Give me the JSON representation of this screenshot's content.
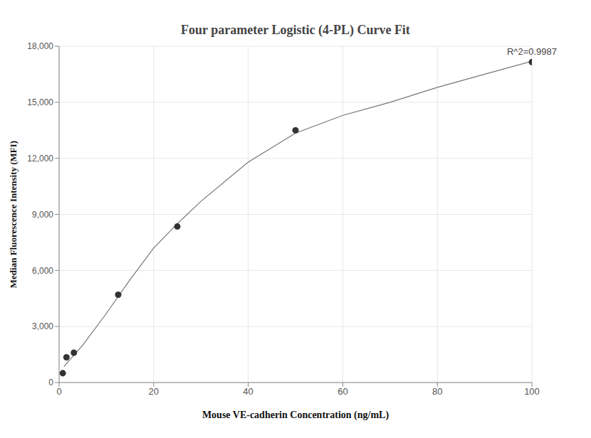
{
  "chart_data": {
    "type": "scatter",
    "title": "Four parameter Logistic (4-PL) Curve Fit",
    "x_label": "Mouse VE-cadherin Concentration (ng/mL)",
    "y_label": "Median Fluorescence Intensity (MFI)",
    "xlim": [
      0,
      100
    ],
    "xticks": [
      0,
      20,
      40,
      60,
      80,
      100
    ],
    "ylim": [
      0,
      18000
    ],
    "yticks": [
      0,
      {
        "value": 3000,
        "label": "3,000"
      },
      {
        "value": 6000,
        "label": "6,000"
      },
      {
        "value": 9000,
        "label": "9,000"
      },
      {
        "value": 12000,
        "label": "12,000"
      },
      {
        "value": 15000,
        "label": "15,000"
      },
      {
        "value": 18000,
        "label": "18,000"
      }
    ],
    "grid": true,
    "series": [
      {
        "type": "line",
        "color": "#777777",
        "x": [
          1,
          5,
          10,
          15,
          20,
          25,
          30,
          40,
          50,
          60,
          70,
          80,
          90,
          100
        ],
        "values": [
          850,
          2000,
          3700,
          5500,
          7200,
          8500,
          9700,
          11800,
          13350,
          14300,
          15000,
          15800,
          16500,
          17200
        ]
      },
      {
        "type": "scatter",
        "color": "#333333",
        "marker": "circle",
        "x": [
          0.78,
          1.56,
          3.125,
          12.5,
          25,
          50,
          100
        ],
        "values": [
          500,
          1350,
          1600,
          4700,
          8350,
          13500,
          17150
        ]
      }
    ],
    "annotations": [
      {
        "text": "R^2=0.9987"
      }
    ]
  }
}
